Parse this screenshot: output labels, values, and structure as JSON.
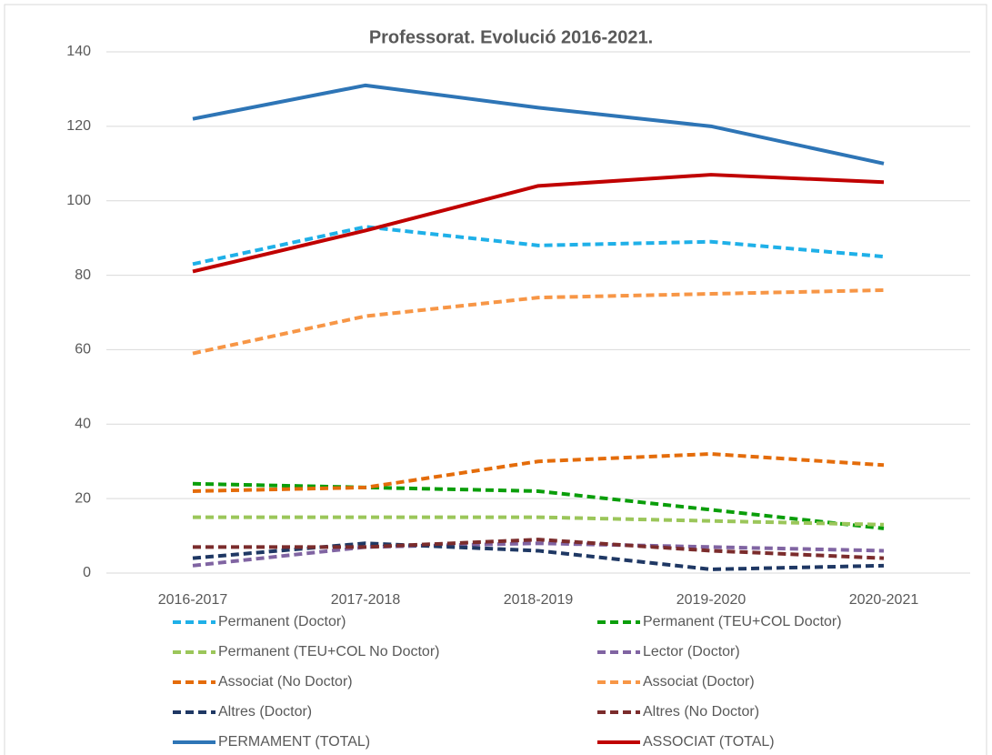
{
  "chart_data": {
    "type": "line",
    "title": "Professorat. Evolució 2016-2021.",
    "categories": [
      "2016-2017",
      "2017-2018",
      "2018-2019",
      "2019-2020",
      "2020-2021"
    ],
    "ylim": [
      0,
      140
    ],
    "yticks": [
      0,
      20,
      40,
      60,
      80,
      100,
      120,
      140
    ],
    "grid": true,
    "legend": "bottom",
    "series": [
      {
        "name": "Permanent (Doctor)",
        "color": "#1fb0e8",
        "line_style": "dashed",
        "values": [
          83,
          93,
          88,
          89,
          85
        ]
      },
      {
        "name": "Permanent (TEU+COL Doctor)",
        "color": "#0a9e0a",
        "line_style": "dashed",
        "values": [
          24,
          23,
          22,
          17,
          12
        ]
      },
      {
        "name": "Permanent (TEU+COL No Doctor)",
        "color": "#9bc65a",
        "line_style": "dashed",
        "values": [
          15,
          15,
          15,
          14,
          13
        ]
      },
      {
        "name": "Lector (Doctor)",
        "color": "#8064a2",
        "line_style": "dashed",
        "values": [
          2,
          7,
          8,
          7,
          6
        ]
      },
      {
        "name": "Associat (No Doctor)",
        "color": "#e46c0a",
        "line_style": "dashed",
        "values": [
          22,
          23,
          30,
          32,
          29
        ]
      },
      {
        "name": "Associat (Doctor)",
        "color": "#f79646",
        "line_style": "dashed",
        "values": [
          59,
          69,
          74,
          75,
          76
        ]
      },
      {
        "name": "Altres (Doctor)",
        "color": "#1f3864",
        "line_style": "dashed",
        "values": [
          4,
          8,
          6,
          1,
          2
        ]
      },
      {
        "name": "Altres (No Doctor)",
        "color": "#7b2c2c",
        "line_style": "dashed",
        "values": [
          7,
          7,
          9,
          6,
          4
        ]
      },
      {
        "name": "PERMAMENT (TOTAL)",
        "color": "#2e75b6",
        "line_style": "solid",
        "values": [
          122,
          131,
          125,
          120,
          110
        ]
      },
      {
        "name": "ASSOCIAT (TOTAL)",
        "color": "#c00000",
        "line_style": "solid",
        "values": [
          81,
          92,
          104,
          107,
          105
        ]
      }
    ]
  }
}
